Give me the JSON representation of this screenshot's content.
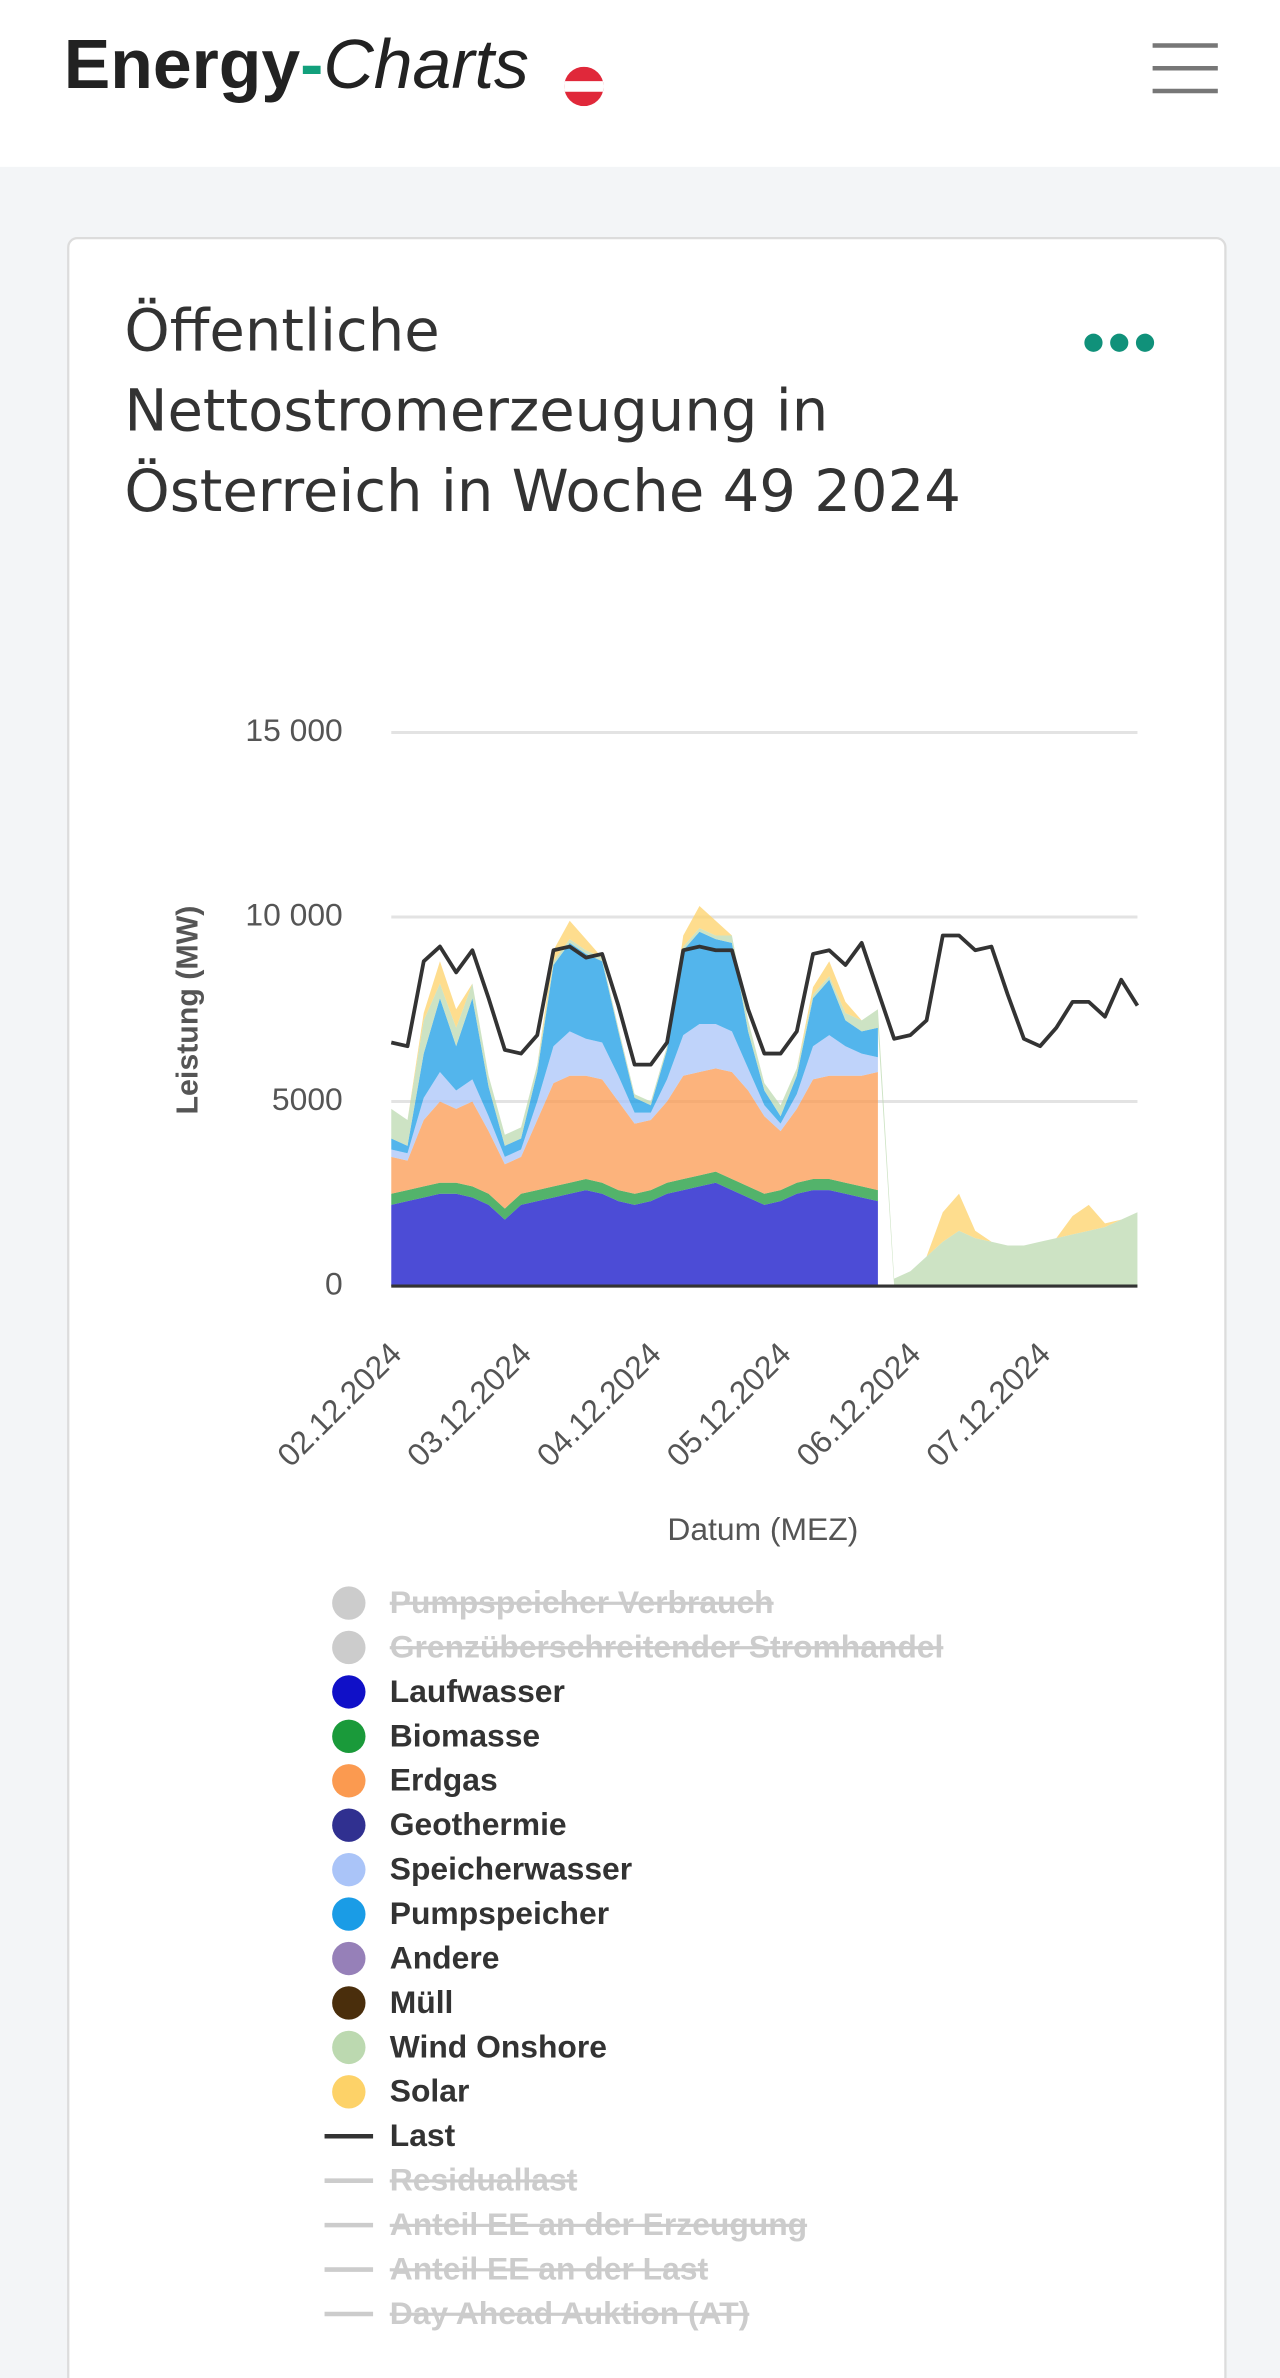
{
  "header": {
    "logo": [
      "Energy",
      "-",
      "Charts"
    ]
  },
  "chart_data": {
    "type": "area",
    "title": "Öffentliche Nettostromerzeugung in Österreich in Woche 49 2024",
    "y_label": "Leistung (MW)",
    "x_label": "Datum (MEZ)",
    "stacked": true,
    "grid": true,
    "categories": [
      "02.12.2024",
      null,
      null,
      null,
      null,
      null,
      null,
      null,
      "03.12.2024",
      null,
      null,
      null,
      null,
      null,
      null,
      null,
      "04.12.2024",
      null,
      null,
      null,
      null,
      null,
      null,
      null,
      "05.12.2024",
      null,
      null,
      null,
      null,
      null,
      null,
      null,
      "06.12.2024",
      null,
      null,
      null,
      null,
      null,
      null,
      null,
      "07.12.2024",
      null,
      null,
      null,
      null,
      null,
      null
    ],
    "ylim": [
      0,
      15000
    ],
    "yticks": [
      0,
      5000,
      {
        "value": 10000,
        "label": "10 000"
      },
      {
        "value": 15000,
        "label": "15 000"
      }
    ],
    "series": [
      {
        "name": "Pumpspeicher Verbrauch",
        "kind": "area",
        "visible": false
      },
      {
        "name": "Grenzüberschreitender Stromhandel",
        "kind": "area",
        "visible": false
      },
      {
        "name": "Laufwasser",
        "kind": "area",
        "color": "#1010c8",
        "values": [
          2200,
          2300,
          2400,
          2500,
          2500,
          2400,
          2200,
          1800,
          2200,
          2300,
          2400,
          2500,
          2600,
          2500,
          2300,
          2200,
          2300,
          2500,
          2600,
          2700,
          2800,
          2600,
          2400,
          2200,
          2300,
          2500,
          2600,
          2600,
          2500,
          2400,
          2300,
          null,
          null,
          null,
          null,
          null,
          null,
          null,
          null,
          null,
          null,
          null,
          null,
          null,
          null,
          null,
          null
        ]
      },
      {
        "name": "Biomasse",
        "kind": "area",
        "color": "#1a9a3a",
        "values": [
          300,
          300,
          300,
          300,
          300,
          300,
          300,
          300,
          300,
          300,
          300,
          300,
          300,
          300,
          300,
          300,
          300,
          300,
          300,
          300,
          300,
          300,
          300,
          300,
          300,
          300,
          300,
          300,
          300,
          300,
          300,
          null,
          null,
          null,
          null,
          null,
          null,
          null,
          null,
          null,
          null,
          null,
          null,
          null,
          null,
          null,
          null
        ]
      },
      {
        "name": "Erdgas",
        "kind": "area",
        "color": "#fb9a50",
        "values": [
          1000,
          800,
          1800,
          2200,
          2000,
          2300,
          1700,
          1200,
          1000,
          1900,
          2800,
          2900,
          2800,
          2800,
          2400,
          1900,
          1900,
          2200,
          2800,
          2800,
          2800,
          2900,
          2600,
          2100,
          1600,
          2000,
          2700,
          2800,
          2900,
          3000,
          3200,
          null,
          null,
          null,
          null,
          null,
          null,
          null,
          null,
          null,
          null,
          null,
          null,
          null,
          null,
          null,
          null
        ]
      },
      {
        "name": "Geothermie",
        "kind": "area",
        "color": "#303090",
        "values": [
          0,
          0,
          0,
          0,
          0,
          0,
          0,
          0,
          0,
          0,
          0,
          0,
          0,
          0,
          0,
          0,
          0,
          0,
          0,
          0,
          0,
          0,
          0,
          0,
          0,
          0,
          0,
          0,
          0,
          0,
          0,
          null,
          null,
          null,
          null,
          null,
          null,
          null,
          null,
          null,
          null,
          null,
          null,
          null,
          null,
          null,
          null
        ]
      },
      {
        "name": "Speicherwasser",
        "kind": "area",
        "color": "#aac4f8",
        "values": [
          200,
          200,
          600,
          800,
          500,
          600,
          400,
          200,
          200,
          500,
          1000,
          1200,
          1000,
          1000,
          700,
          300,
          200,
          600,
          1100,
          1300,
          1200,
          1100,
          600,
          300,
          200,
          400,
          900,
          1100,
          800,
          600,
          400,
          null,
          null,
          null,
          null,
          null,
          null,
          null,
          null,
          null,
          null,
          null,
          null,
          null,
          null,
          null,
          null
        ]
      },
      {
        "name": "Pumpspeicher",
        "kind": "area",
        "color": "#1a9ce6",
        "values": [
          300,
          200,
          1200,
          2000,
          1200,
          2200,
          800,
          300,
          300,
          800,
          2200,
          2400,
          2300,
          2200,
          1200,
          400,
          200,
          800,
          2300,
          2500,
          2300,
          2400,
          1000,
          400,
          200,
          500,
          1300,
          1500,
          700,
          600,
          800,
          null,
          null,
          null,
          null,
          null,
          null,
          null,
          null,
          null,
          null,
          null,
          null,
          null,
          null,
          null,
          null
        ]
      },
      {
        "name": "Andere",
        "kind": "area",
        "color": "#9680b8",
        "values": [
          0,
          0,
          0,
          0,
          0,
          0,
          0,
          0,
          0,
          0,
          0,
          0,
          0,
          0,
          0,
          0,
          0,
          0,
          0,
          0,
          0,
          0,
          0,
          0,
          0,
          0,
          0,
          0,
          0,
          0,
          0,
          null,
          null,
          null,
          null,
          null,
          null,
          null,
          null,
          null,
          null,
          null,
          null,
          null,
          null,
          null,
          null
        ]
      },
      {
        "name": "Müll",
        "kind": "area",
        "color": "#4a2e0c",
        "values": [
          0,
          0,
          0,
          0,
          0,
          0,
          0,
          0,
          0,
          0,
          0,
          0,
          0,
          0,
          0,
          0,
          0,
          0,
          0,
          0,
          0,
          0,
          0,
          0,
          0,
          0,
          0,
          0,
          0,
          0,
          0,
          null,
          null,
          null,
          null,
          null,
          null,
          null,
          null,
          null,
          null,
          null,
          null,
          null,
          null,
          null,
          null
        ]
      },
      {
        "name": "Wind Onshore",
        "kind": "area",
        "color": "#bcd9b0",
        "values": [
          800,
          700,
          900,
          400,
          500,
          400,
          300,
          300,
          300,
          200,
          100,
          100,
          100,
          100,
          100,
          100,
          100,
          100,
          100,
          100,
          100,
          200,
          300,
          200,
          300,
          200,
          100,
          100,
          200,
          300,
          500,
          200,
          400,
          800,
          1200,
          1500,
          1300,
          1200,
          1100,
          1100,
          1200,
          1300,
          1400,
          1500,
          1600,
          1800,
          2000
        ]
      },
      {
        "name": "Solar",
        "kind": "area",
        "color": "#fdd268",
        "values": [
          0,
          0,
          200,
          600,
          500,
          0,
          0,
          0,
          0,
          0,
          300,
          500,
          300,
          0,
          0,
          0,
          0,
          0,
          300,
          600,
          400,
          0,
          0,
          0,
          0,
          0,
          200,
          400,
          300,
          0,
          0,
          0,
          0,
          0,
          800,
          1000,
          200,
          0,
          0,
          0,
          0,
          0,
          500,
          700,
          100,
          0,
          0
        ]
      },
      {
        "name": "Last",
        "kind": "line",
        "color": "#333333",
        "values": [
          6600,
          6500,
          8800,
          9200,
          8500,
          9100,
          7800,
          6400,
          6300,
          6800,
          9100,
          9200,
          8900,
          9000,
          7600,
          6000,
          6000,
          6600,
          9100,
          9200,
          9100,
          9100,
          7500,
          6300,
          6300,
          6900,
          9000,
          9100,
          8700,
          9300,
          8000,
          6700,
          6800,
          7200,
          9500,
          9500,
          9100,
          9200,
          7900,
          6700,
          6500,
          7000,
          7700,
          7700,
          7300,
          8300,
          7600
        ]
      },
      {
        "name": "Residuallast",
        "kind": "line",
        "visible": false
      },
      {
        "name": "Anteil EE an der Erzeugung",
        "kind": "line",
        "visible": false
      },
      {
        "name": "Anteil EE an der Last",
        "kind": "line",
        "visible": false
      },
      {
        "name": "Day Ahead Auktion (AT)",
        "kind": "line",
        "visible": false
      }
    ]
  }
}
